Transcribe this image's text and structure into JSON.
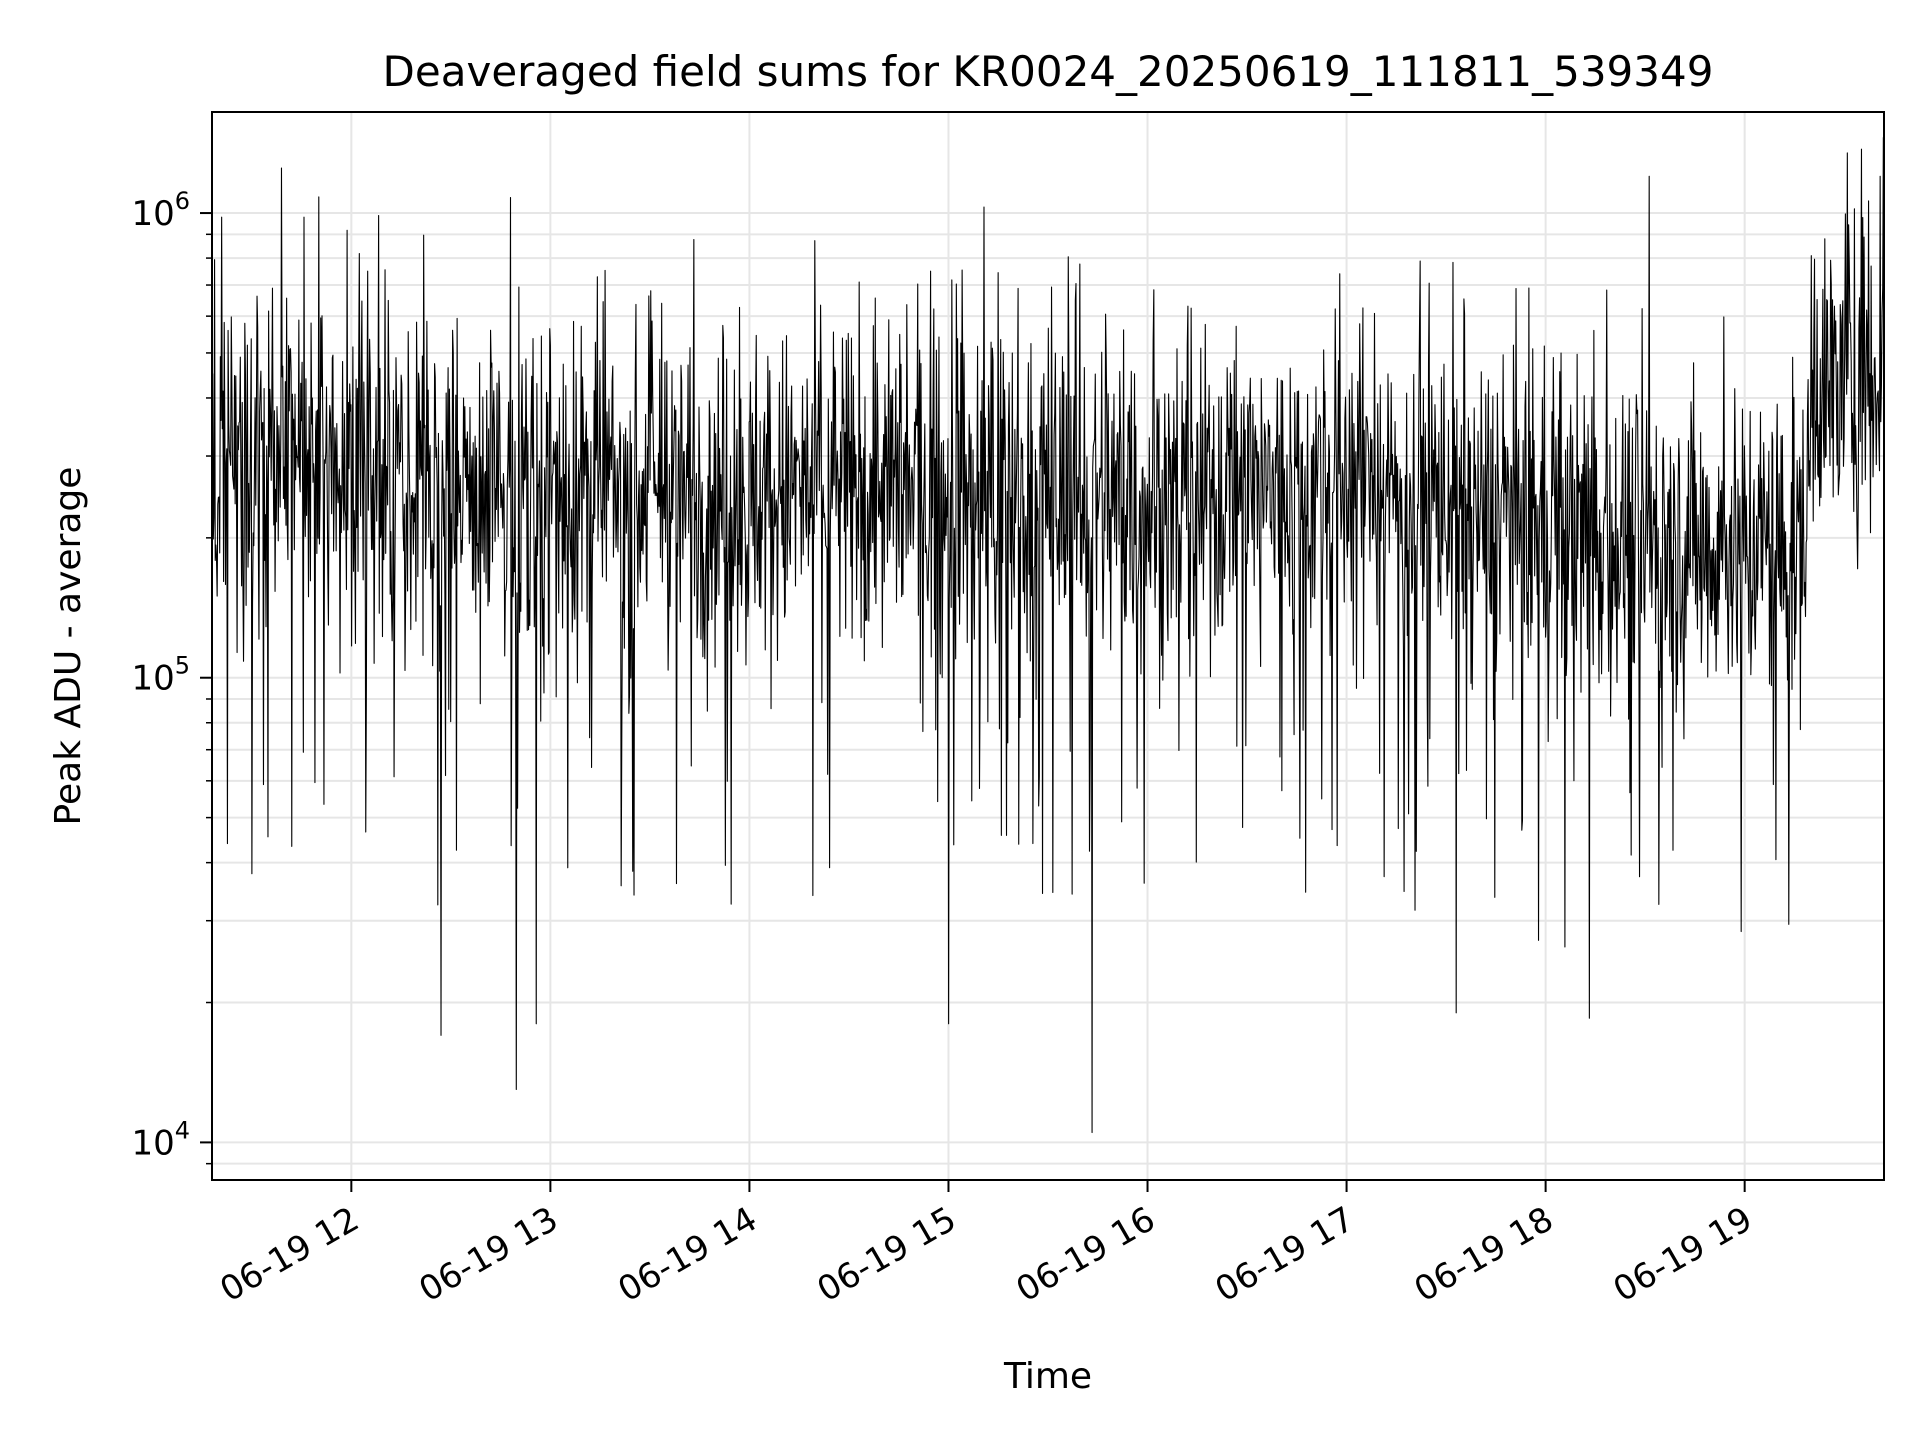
{
  "chart_data": {
    "type": "line",
    "title": "Deaveraged field sums for KR0024_20250619_111811_539349",
    "xlabel": "Time",
    "ylabel": "Peak ADU - average",
    "x_ticks": [
      "06-19 12",
      "06-19 13",
      "06-19 14",
      "06-19 15",
      "06-19 16",
      "06-19 17",
      "06-19 18",
      "06-19 19"
    ],
    "x_tick_hours": [
      12,
      13,
      14,
      15,
      16,
      17,
      18,
      19
    ],
    "xlim_hours": [
      11.3,
      19.7
    ],
    "y_scale": "log",
    "ylim": [
      8300,
      1650000
    ],
    "y_ticks": [
      {
        "value": 10000,
        "base": "10",
        "exp": "4"
      },
      {
        "value": 100000,
        "base": "10",
        "exp": "5"
      },
      {
        "value": 1000000,
        "base": "10",
        "exp": "6"
      }
    ],
    "grid": true,
    "line_color": "#000000",
    "grid_color": "#e6e6e6",
    "series": [
      {
        "x_start_hour": 11.3,
        "x_end_hour": 19.7,
        "baseline_values": [
          {
            "hour": 11.3,
            "value": 260000
          },
          {
            "hour": 11.7,
            "value": 320000
          },
          {
            "hour": 12.5,
            "value": 250000
          },
          {
            "hour": 14.0,
            "value": 250000
          },
          {
            "hour": 16.0,
            "value": 240000
          },
          {
            "hour": 17.0,
            "value": 260000
          },
          {
            "hour": 18.3,
            "value": 200000
          },
          {
            "hour": 19.3,
            "value": 190000
          },
          {
            "hour": 19.35,
            "value": 420000
          },
          {
            "hour": 19.7,
            "value": 460000
          }
        ],
        "notable_peaks": [
          {
            "hour": 11.35,
            "value": 980000
          },
          {
            "hour": 11.65,
            "value": 1250000
          },
          {
            "hour": 12.8,
            "value": 1080000
          },
          {
            "hour": 15.18,
            "value": 1030000
          },
          {
            "hour": 18.52,
            "value": 1200000
          },
          {
            "hour": 19.68,
            "value": 1200000
          }
        ],
        "notable_dips": [
          {
            "hour": 12.45,
            "value": 17000
          },
          {
            "hour": 12.83,
            "value": 13000
          },
          {
            "hour": 12.93,
            "value": 18000
          },
          {
            "hour": 15.0,
            "value": 18000
          },
          {
            "hour": 15.72,
            "value": 10500
          },
          {
            "hour": 17.55,
            "value": 19000
          },
          {
            "hour": 18.22,
            "value": 18500
          }
        ]
      }
    ]
  }
}
